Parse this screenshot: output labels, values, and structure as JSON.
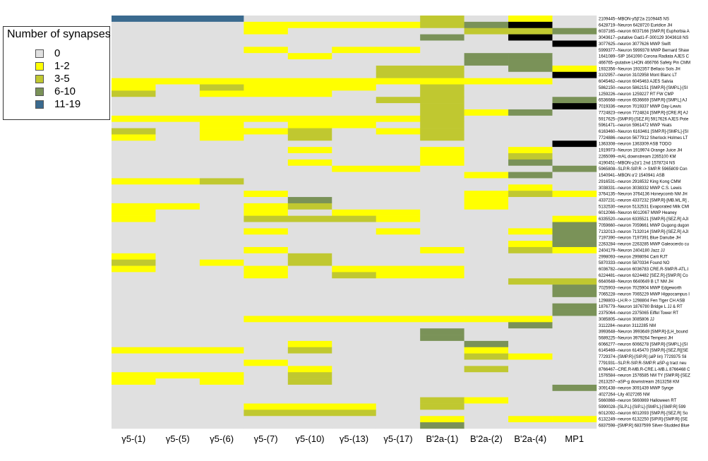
{
  "legend": {
    "title": "Number of synapses",
    "items": [
      {
        "label": "0",
        "color": "#e0e0e0"
      },
      {
        "label": "1-2",
        "color": "#ffff00"
      },
      {
        "label": "3-5",
        "color": "#c0c830"
      },
      {
        "label": "6-10",
        "color": "#7a9258"
      },
      {
        "label": "11-19",
        "color": "#3a6a8f"
      }
    ]
  },
  "chart_data": {
    "type": "heatmap",
    "columns": [
      "γ5-(1)",
      "γ5-(5)",
      "γ5-(6)",
      "γ5-(7)",
      "γ5-(10)",
      "γ5-(13)",
      "γ5-(17)",
      "B'2a-(1)",
      "B'2a-(2)",
      "B'2a-(4)",
      "MP1"
    ],
    "rows": [
      "2109445--MBON-γ5β'2a 2109445 NS",
      "6428719--Neuron 6428720 Euridice JH",
      "6037165--neuron 6037166 [SMP.R] Euphorbia A",
      "3043617--putative Gad1-F-300129 3043618 NS",
      "3077625--neuron 3077626 MWP Swift",
      "5999377--Neuron 5999378 MWP Bernard Shaw",
      "1641089--SIP 1641090 Corona Radiata AJES C",
      "466765--putative LHON 466766 Safety Pin CMM",
      "1932356--Neuron 1932357 Bellaco Sols JH",
      "3102957--neuron 3102958 Mont Blanc LT",
      "6045462--neuron 6045463 AJES Salvia",
      "5862150--neuron 5862151 [SMP.R]-[SMP.L]-[SI",
      "1259226--neuron 1259227 RT FW CMP",
      "6536668--neuron 6536669 [SMP.R]-[SMP.L] AJ",
      "7019336--neuron 7019337 MWP Day-Lewis",
      "7724823--neuron 7724824 [SMP.R]-[CRE.R] AJ",
      "5917625--[SMP.R]-[SEZ.R] 5917626 AJES Pote",
      "5961471--neuron 5961472 MWP Yeats",
      "6163460--Neuron 6163461 [SMP.R]-[SMP.L]-[SI",
      "7724886--neuron 5677912 Sherlock Holmes LT",
      "1363308--neuron 1363309 ASB TODO",
      "1919973--Neuron 1919974 Orange Juice JH",
      "2265099--mAL downstream 2265100 KM",
      "4190451--MBON-γ2α'1 2nd 1578724 NS",
      "5965808--SLP.R-SIP.R -> SMP.R 5965809 Con",
      "1540941--MBON α'2 1540941 ASB",
      "2916531--neuron 2916532 King Kong CMM",
      "3038331--neuron 3038332 MWP C.S. Lewis",
      "3764135--Neuron 3764136 Honeycomb NM JH",
      "4337231--neuron 4337232 [SMP.R]-[MB.ML.R] ,",
      "5132530--neuron 5132531 Evaporated Milk CMI",
      "6012066--Neuron 6012067 MWP Heaney",
      "6335520--neuron 6335521 [SMP.R]-[SEZ.R] AJI",
      "7059660--neuron 7059661 MWP Dugong dugon",
      "7132013--neuron 7132014 [SMP.R]-[SEZ.R] AJI",
      "7197390--neuron 7197391 Blue Danube JH",
      "2263284--neuron 2263285 MWP Galeocerdo cu",
      "2404179--Neuron 2404180 Jazz JJ",
      "2998093--neuron 2998094 Carli RJT",
      "5870333--neuron 5870334 Found NO",
      "6036782--neuron 6036783 CRE.R-SMP.R-ATL.I",
      "6224481--neuron 6224482 [SEZ.R]-[SMP.R] Co",
      "6640648--Neuron 6640649 B LT NM JH",
      "7025903--neuron 7025904 MWP Edgeworth",
      "7065228--neuron 7065229 MWP Hippocampus I",
      "1298803--LH.R-> 1298804 Fen Tiger CH ASB",
      "1876779--Neuron 1876780 Bridge L JJ & RT",
      "2375064--neuron 2375065 Eiffel Tower RT",
      "3085805--neuron 3085806 JJ",
      "3112284--neuron 3112285 NM",
      "3993648--Neuron 3993649 [SMP.R]-[LH_bound",
      "5689225--Neuron 3979264 Tempest JH",
      "6066277--neuron 6066278 [SMP.R]-[SMP.L]-[SI",
      "6145469--neuron 6145470 [SMP.R]-[SEZ.R][SE",
      "7729374--[SMP.R]-[SIP.R] (alP lin) 7729375 Sli",
      "7791931--SLP.R-SIP.R-SMP.R aSP-g tract neu",
      "8766467--CRE.R-MB.R-CRE.L-MB.L 8766468 C",
      "1576584--neuron 1576585 NM TY [SMP.R]-[SEZ",
      "2613257--aSP-g downstream 2613258 KM",
      "3091438--neuron 3091439 MWP Synge",
      "4027264--Lily 4027265 NM",
      "5660868--neuron 5660869 Halloween RT",
      "5990028--[SLP.L]-[SIP.L]-[SMP.L]-[SMP.R] 599",
      "6012092--neuron 6012093 [SMP.R]-[SEZ.R] So",
      "6132249--neuron 6132250 [SIP.R]-[SMP.R]-[SE",
      "6837598--[SMP.R] 6837599 Silver-Studded Blue"
    ],
    "values": [
      [
        4,
        4,
        4,
        0,
        0,
        0,
        0,
        2,
        0,
        1,
        0
      ],
      [
        0,
        0,
        0,
        1,
        1,
        1,
        1,
        2,
        3,
        5,
        0
      ],
      [
        0,
        0,
        0,
        1,
        0,
        0,
        0,
        0,
        2,
        2,
        3
      ],
      [
        0,
        0,
        0,
        0,
        0,
        0,
        0,
        3,
        0,
        5,
        0
      ],
      [
        0,
        0,
        0,
        0,
        0,
        0,
        0,
        0,
        0,
        0,
        5
      ],
      [
        0,
        0,
        0,
        1,
        0,
        1,
        1,
        0,
        0,
        0,
        0
      ],
      [
        0,
        0,
        0,
        0,
        1,
        0,
        0,
        0,
        3,
        3,
        0
      ],
      [
        0,
        0,
        0,
        0,
        0,
        0,
        0,
        0,
        3,
        3,
        0
      ],
      [
        0,
        0,
        0,
        0,
        0,
        0,
        2,
        2,
        0,
        3,
        1
      ],
      [
        0,
        0,
        0,
        0,
        0,
        0,
        2,
        2,
        0,
        0,
        5
      ],
      [
        1,
        1,
        1,
        1,
        1,
        1,
        1,
        1,
        1,
        1,
        0
      ],
      [
        1,
        0,
        2,
        1,
        1,
        1,
        0,
        2,
        0,
        0,
        0
      ],
      [
        2,
        0,
        1,
        1,
        1,
        0,
        0,
        2,
        0,
        0,
        0
      ],
      [
        0,
        0,
        0,
        0,
        0,
        0,
        2,
        2,
        0,
        0,
        3
      ],
      [
        0,
        0,
        0,
        0,
        0,
        0,
        0,
        2,
        0,
        0,
        5
      ],
      [
        0,
        0,
        0,
        0,
        0,
        0,
        0,
        2,
        1,
        3,
        0
      ],
      [
        1,
        1,
        1,
        1,
        1,
        1,
        1,
        2,
        0,
        0,
        0
      ],
      [
        0,
        0,
        1,
        0,
        1,
        1,
        0,
        2,
        0,
        0,
        0
      ],
      [
        2,
        0,
        1,
        1,
        2,
        0,
        1,
        2,
        0,
        0,
        0
      ],
      [
        1,
        0,
        1,
        0,
        2,
        0,
        0,
        2,
        0,
        0,
        0
      ],
      [
        0,
        0,
        0,
        0,
        0,
        0,
        0,
        0,
        0,
        0,
        5
      ],
      [
        0,
        0,
        0,
        0,
        1,
        0,
        0,
        1,
        0,
        1,
        0
      ],
      [
        0,
        0,
        0,
        0,
        0,
        0,
        0,
        1,
        0,
        2,
        0
      ],
      [
        0,
        0,
        0,
        0,
        1,
        0,
        0,
        1,
        0,
        3,
        0
      ],
      [
        0,
        0,
        0,
        0,
        0,
        1,
        1,
        0,
        0,
        0,
        3
      ],
      [
        0,
        0,
        0,
        0,
        0,
        0,
        0,
        0,
        1,
        3,
        0
      ],
      [
        1,
        1,
        2,
        0,
        0,
        0,
        0,
        0,
        0,
        0,
        0
      ],
      [
        0,
        0,
        0,
        0,
        0,
        0,
        0,
        0,
        0,
        1,
        0
      ],
      [
        0,
        0,
        0,
        1,
        0,
        0,
        0,
        0,
        1,
        2,
        1
      ],
      [
        0,
        0,
        0,
        0,
        3,
        0,
        0,
        0,
        1,
        0,
        0
      ],
      [
        1,
        1,
        0,
        1,
        2,
        0,
        0,
        0,
        1,
        0,
        0
      ],
      [
        1,
        0,
        0,
        1,
        0,
        1,
        1,
        0,
        0,
        0,
        0
      ],
      [
        1,
        0,
        0,
        2,
        2,
        2,
        1,
        0,
        0,
        0,
        1
      ],
      [
        0,
        0,
        0,
        0,
        0,
        0,
        0,
        0,
        0,
        0,
        3
      ],
      [
        0,
        0,
        0,
        1,
        0,
        0,
        1,
        0,
        0,
        1,
        3
      ],
      [
        0,
        0,
        0,
        0,
        0,
        0,
        0,
        0,
        0,
        0,
        3
      ],
      [
        0,
        0,
        0,
        0,
        0,
        0,
        0,
        0,
        0,
        1,
        3
      ],
      [
        0,
        0,
        0,
        1,
        0,
        0,
        0,
        1,
        0,
        2,
        1
      ],
      [
        1,
        0,
        0,
        0,
        2,
        0,
        0,
        0,
        0,
        0,
        0
      ],
      [
        2,
        0,
        1,
        0,
        2,
        0,
        0,
        0,
        0,
        0,
        0
      ],
      [
        1,
        0,
        0,
        1,
        0,
        1,
        1,
        1,
        0,
        0,
        0
      ],
      [
        0,
        0,
        0,
        1,
        0,
        2,
        1,
        1,
        0,
        0,
        0
      ],
      [
        0,
        0,
        0,
        0,
        0,
        0,
        0,
        0,
        0,
        2,
        2
      ],
      [
        0,
        0,
        0,
        0,
        0,
        0,
        0,
        0,
        0,
        0,
        3
      ],
      [
        0,
        0,
        0,
        0,
        0,
        0,
        0,
        0,
        0,
        0,
        3
      ],
      [
        0,
        0,
        0,
        0,
        0,
        0,
        0,
        0,
        0,
        0,
        0
      ],
      [
        0,
        0,
        0,
        0,
        0,
        0,
        0,
        0,
        0,
        0,
        3
      ],
      [
        0,
        0,
        0,
        0,
        0,
        0,
        0,
        0,
        0,
        0,
        3
      ],
      [
        0,
        0,
        0,
        1,
        1,
        1,
        1,
        1,
        1,
        1,
        0
      ],
      [
        0,
        0,
        0,
        0,
        0,
        0,
        0,
        0,
        0,
        3,
        0
      ],
      [
        0,
        0,
        0,
        0,
        0,
        0,
        0,
        3,
        0,
        0,
        0
      ],
      [
        0,
        0,
        0,
        0,
        0,
        0,
        0,
        3,
        0,
        0,
        0
      ],
      [
        0,
        0,
        0,
        0,
        1,
        0,
        0,
        0,
        3,
        0,
        0
      ],
      [
        1,
        1,
        1,
        0,
        2,
        0,
        0,
        0,
        1,
        0,
        0
      ],
      [
        0,
        0,
        0,
        0,
        0,
        0,
        0,
        0,
        2,
        1,
        0
      ],
      [
        0,
        0,
        0,
        1,
        0,
        0,
        0,
        0,
        0,
        0,
        0
      ],
      [
        0,
        0,
        0,
        0,
        1,
        0,
        0,
        0,
        2,
        0,
        0
      ],
      [
        1,
        1,
        1,
        0,
        2,
        0,
        0,
        0,
        0,
        0,
        0
      ],
      [
        1,
        0,
        1,
        0,
        2,
        0,
        0,
        0,
        0,
        0,
        0
      ],
      [
        0,
        0,
        0,
        0,
        0,
        0,
        0,
        0,
        0,
        0,
        3
      ],
      [
        0,
        0,
        0,
        0,
        0,
        0,
        0,
        0,
        0,
        0,
        0
      ],
      [
        0,
        0,
        0,
        0,
        0,
        0,
        0,
        2,
        1,
        0,
        0
      ],
      [
        0,
        0,
        0,
        1,
        1,
        1,
        0,
        2,
        0,
        0,
        0
      ],
      [
        0,
        0,
        0,
        2,
        2,
        2,
        0,
        0,
        0,
        0,
        0
      ],
      [
        0,
        0,
        0,
        0,
        0,
        0,
        0,
        1,
        0,
        1,
        1
      ],
      [
        0,
        0,
        0,
        0,
        0,
        0,
        0,
        3,
        0,
        0,
        0
      ]
    ]
  }
}
